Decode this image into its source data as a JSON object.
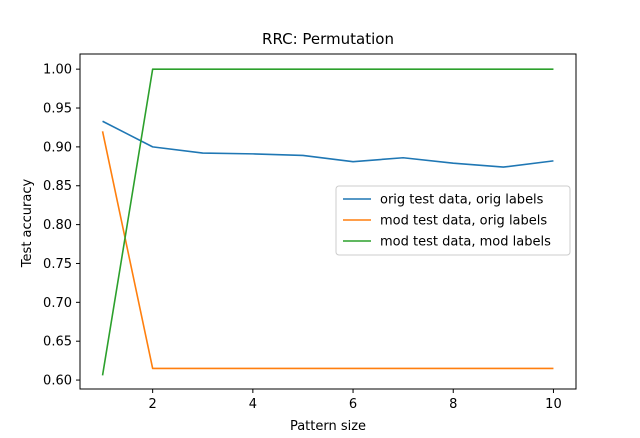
{
  "chart_data": {
    "type": "line",
    "title": "RRC: Permutation",
    "xlabel": "Pattern size",
    "ylabel": "Test accuracy",
    "xlim": [
      0.55,
      10.45
    ],
    "ylim": [
      0.5885,
      1.0195
    ],
    "xticks": [
      "2",
      "4",
      "6",
      "8",
      "10"
    ],
    "xtick_values": [
      2,
      4,
      6,
      8,
      10
    ],
    "yticks": [
      "0.60",
      "0.65",
      "0.70",
      "0.75",
      "0.80",
      "0.85",
      "0.90",
      "0.95",
      "1.00"
    ],
    "ytick_values": [
      0.6,
      0.65,
      0.7,
      0.75,
      0.8,
      0.85,
      0.9,
      0.95,
      1.0
    ],
    "x": [
      1,
      2,
      3,
      4,
      5,
      6,
      7,
      8,
      9,
      10
    ],
    "series": [
      {
        "name": "orig test data, orig labels",
        "color": "#1f77b4",
        "values": [
          0.933,
          0.9,
          0.892,
          0.891,
          0.889,
          0.881,
          0.886,
          0.879,
          0.874,
          0.882
        ]
      },
      {
        "name": "mod test data, orig labels",
        "color": "#ff7f0e",
        "values": [
          0.92,
          0.615,
          0.615,
          0.615,
          0.615,
          0.615,
          0.615,
          0.615,
          0.615,
          0.615
        ]
      },
      {
        "name": "mod test data, mod labels",
        "color": "#2ca02c",
        "values": [
          0.606,
          1.0,
          1.0,
          1.0,
          1.0,
          1.0,
          1.0,
          1.0,
          1.0,
          1.0
        ]
      }
    ],
    "legend": "center-right",
    "grid": false
  }
}
